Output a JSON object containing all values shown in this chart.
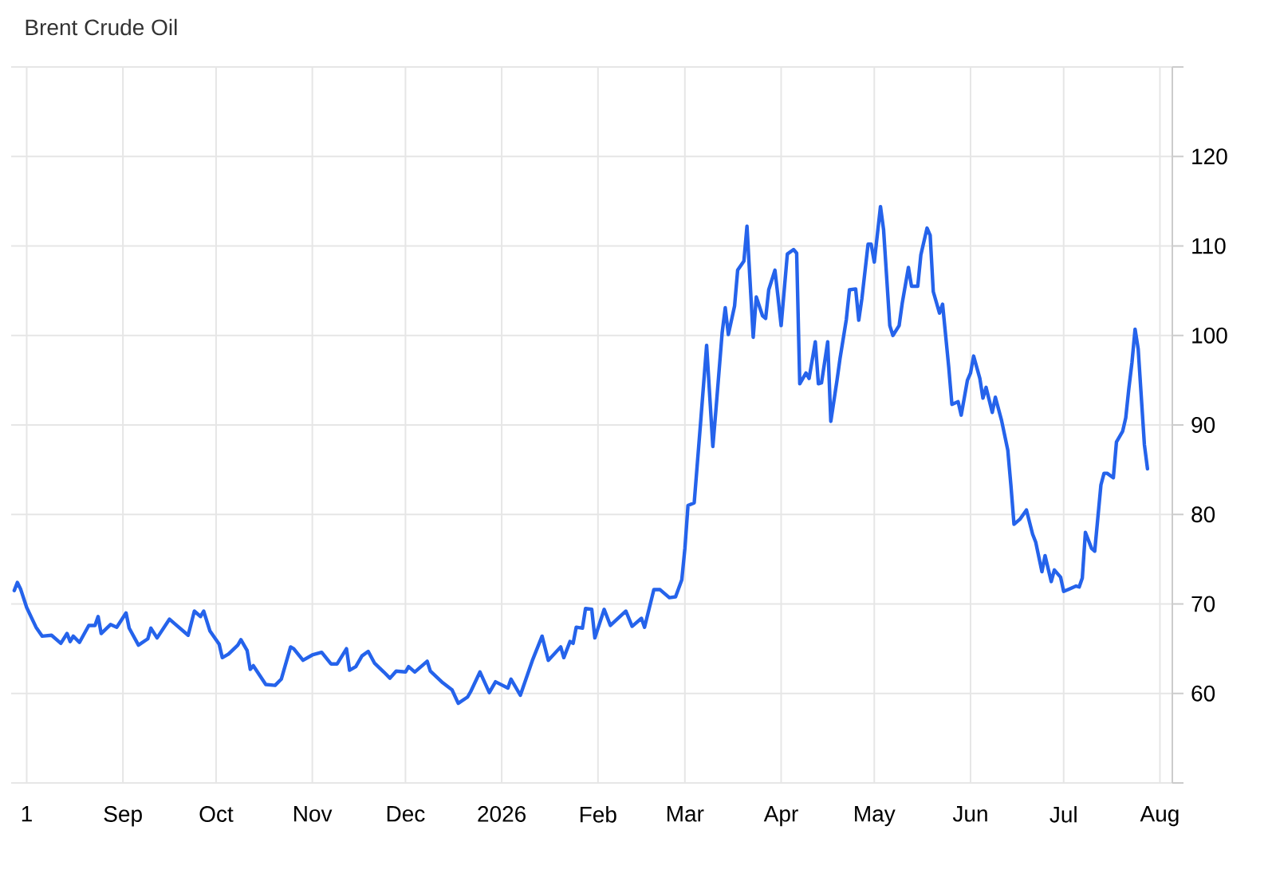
{
  "chart_data": {
    "type": "line",
    "title": "Brent Crude Oil",
    "x": [
      "2025-07-28",
      "2025-07-29",
      "2025-07-30",
      "2025-08-01",
      "2025-08-04",
      "2025-08-06",
      "2025-08-09",
      "2025-08-12",
      "2025-08-14",
      "2025-08-15",
      "2025-08-16",
      "2025-08-18",
      "2025-08-21",
      "2025-08-23",
      "2025-08-24",
      "2025-08-25",
      "2025-08-28",
      "2025-08-30",
      "2025-09-02",
      "2025-09-03",
      "2025-09-06",
      "2025-09-09",
      "2025-09-10",
      "2025-09-12",
      "2025-09-16",
      "2025-09-18",
      "2025-09-22",
      "2025-09-24",
      "2025-09-26",
      "2025-09-27",
      "2025-09-29",
      "2025-10-02",
      "2025-10-03",
      "2025-10-05",
      "2025-10-08",
      "2025-10-09",
      "2025-10-11",
      "2025-10-12",
      "2025-10-13",
      "2025-10-17",
      "2025-10-20",
      "2025-10-22",
      "2025-10-25",
      "2025-10-26",
      "2025-10-29",
      "2025-11-01",
      "2025-11-04",
      "2025-11-07",
      "2025-11-09",
      "2025-11-12",
      "2025-11-13",
      "2025-11-15",
      "2025-11-17",
      "2025-11-19",
      "2025-11-21",
      "2025-11-24",
      "2025-11-26",
      "2025-11-28",
      "2025-12-01",
      "2025-12-02",
      "2025-12-04",
      "2025-12-08",
      "2025-12-09",
      "2025-12-13",
      "2025-12-16",
      "2025-12-18",
      "2025-12-21",
      "2025-12-22",
      "2025-12-25",
      "2025-12-28",
      "2025-12-30",
      "2026-01-03",
      "2026-01-04",
      "2026-01-07",
      "2026-01-11",
      "2026-01-14",
      "2026-01-16",
      "2026-01-20",
      "2026-01-21",
      "2026-01-23",
      "2026-01-24",
      "2026-01-25",
      "2026-01-27",
      "2026-01-28",
      "2026-01-30",
      "2026-01-31",
      "2026-02-03",
      "2026-02-05",
      "2026-02-10",
      "2026-02-12",
      "2026-02-15",
      "2026-02-16",
      "2026-02-19",
      "2026-02-21",
      "2026-02-24",
      "2026-02-26",
      "2026-02-28",
      "2026-03-01",
      "2026-03-02",
      "2026-03-04",
      "2026-03-06",
      "2026-03-08",
      "2026-03-10",
      "2026-03-11",
      "2026-03-13",
      "2026-03-14",
      "2026-03-15",
      "2026-03-17",
      "2026-03-18",
      "2026-03-20",
      "2026-03-21",
      "2026-03-23",
      "2026-03-24",
      "2026-03-26",
      "2026-03-27",
      "2026-03-28",
      "2026-03-30",
      "2026-03-31",
      "2026-04-01",
      "2026-04-03",
      "2026-04-05",
      "2026-04-06",
      "2026-04-07",
      "2026-04-09",
      "2026-04-10",
      "2026-04-12",
      "2026-04-13",
      "2026-04-14",
      "2026-04-16",
      "2026-04-17",
      "2026-04-19",
      "2026-04-20",
      "2026-04-22",
      "2026-04-23",
      "2026-04-25",
      "2026-04-26",
      "2026-04-27",
      "2026-04-29",
      "2026-04-30",
      "2026-05-01",
      "2026-05-03",
      "2026-05-04",
      "2026-05-06",
      "2026-05-07",
      "2026-05-09",
      "2026-05-10",
      "2026-05-12",
      "2026-05-13",
      "2026-05-15",
      "2026-05-16",
      "2026-05-18",
      "2026-05-19",
      "2026-05-20",
      "2026-05-22",
      "2026-05-23",
      "2026-05-25",
      "2026-05-26",
      "2026-05-28",
      "2026-05-29",
      "2026-05-31",
      "2026-06-01",
      "2026-06-02",
      "2026-06-04",
      "2026-06-05",
      "2026-06-06",
      "2026-06-08",
      "2026-06-09",
      "2026-06-11",
      "2026-06-13",
      "2026-06-14",
      "2026-06-15",
      "2026-06-17",
      "2026-06-19",
      "2026-06-21",
      "2026-06-22",
      "2026-06-24",
      "2026-06-25",
      "2026-06-27",
      "2026-06-28",
      "2026-06-30",
      "2026-07-01",
      "2026-07-03",
      "2026-07-05",
      "2026-07-06",
      "2026-07-07",
      "2026-07-08",
      "2026-07-10",
      "2026-07-11",
      "2026-07-13",
      "2026-07-14",
      "2026-07-15",
      "2026-07-17",
      "2026-07-18",
      "2026-07-20",
      "2026-07-21",
      "2026-07-22",
      "2026-07-23",
      "2026-07-24",
      "2026-07-25",
      "2026-07-27",
      "2026-07-28"
    ],
    "series": [
      {
        "color": "#2563eb",
        "values": [
          71.5,
          72.4,
          71.7,
          69.6,
          67.4,
          66.4,
          66.5,
          65.6,
          66.7,
          65.8,
          66.4,
          65.7,
          67.6,
          67.6,
          68.6,
          66.7,
          67.7,
          67.4,
          69.0,
          67.3,
          65.4,
          66.1,
          67.3,
          66.2,
          68.3,
          67.7,
          66.5,
          69.2,
          68.6,
          69.2,
          67.0,
          65.5,
          64.0,
          64.4,
          65.4,
          66.0,
          64.8,
          62.7,
          63.1,
          61.0,
          60.9,
          61.6,
          65.2,
          65.0,
          63.7,
          64.3,
          64.6,
          63.3,
          63.3,
          65.0,
          62.6,
          63.0,
          64.2,
          64.7,
          63.4,
          62.4,
          61.7,
          62.5,
          62.4,
          63.0,
          62.4,
          63.6,
          62.5,
          61.2,
          60.4,
          58.9,
          59.6,
          60.2,
          62.4,
          60.1,
          61.3,
          60.6,
          61.6,
          59.8,
          63.8,
          66.4,
          63.7,
          65.2,
          64.0,
          65.8,
          65.6,
          67.4,
          67.3,
          69.5,
          69.4,
          66.2,
          69.4,
          67.6,
          69.2,
          67.5,
          68.4,
          67.4,
          71.6,
          71.6,
          70.7,
          70.8,
          72.7,
          76.2,
          81.0,
          81.3,
          90.0,
          98.9,
          87.6,
          91.7,
          100.3,
          103.1,
          100.1,
          103.3,
          107.3,
          108.3,
          112.2,
          99.8,
          104.3,
          102.2,
          101.9,
          105.1,
          107.3,
          104.3,
          101.1,
          109.1,
          109.6,
          109.2,
          94.6,
          95.8,
          95.2,
          99.3,
          94.6,
          94.7,
          99.3,
          90.4,
          95.0,
          97.5,
          101.8,
          105.1,
          105.2,
          101.7,
          104.1,
          110.2,
          110.2,
          108.2,
          114.4,
          111.8,
          101.1,
          100.0,
          101.1,
          103.6,
          107.6,
          105.5,
          105.5,
          109.0,
          112.0,
          111.2,
          104.9,
          102.5,
          103.5,
          96.4,
          92.3,
          92.6,
          91.1,
          95.0,
          95.8,
          97.7,
          95.2,
          93.0,
          94.2,
          91.4,
          93.1,
          90.5,
          87.2,
          83.3,
          78.9,
          79.5,
          80.5,
          77.8,
          76.9,
          73.6,
          75.4,
          72.5,
          73.8,
          73.0,
          71.4,
          71.7,
          72.0,
          71.9,
          72.9,
          78.0,
          76.2,
          75.9,
          83.3,
          84.6,
          84.6,
          84.1,
          88.1,
          89.3,
          90.8,
          94.1,
          97.0,
          100.7,
          98.5,
          87.8,
          85.1
        ]
      }
    ],
    "xlim": [
      "2025-07-27",
      "2026-08-05"
    ],
    "xticks": [
      {
        "value": "2025-08-01",
        "label": "1"
      },
      {
        "value": "2025-09-01",
        "label": "Sep"
      },
      {
        "value": "2025-10-01",
        "label": "Oct"
      },
      {
        "value": "2025-11-01",
        "label": "Nov"
      },
      {
        "value": "2025-12-01",
        "label": "Dec"
      },
      {
        "value": "2026-01-01",
        "label": "2026"
      },
      {
        "value": "2026-02-01",
        "label": "Feb"
      },
      {
        "value": "2026-03-01",
        "label": "Mar"
      },
      {
        "value": "2026-04-01",
        "label": "Apr"
      },
      {
        "value": "2026-05-01",
        "label": "May"
      },
      {
        "value": "2026-06-01",
        "label": "Jun"
      },
      {
        "value": "2026-07-01",
        "label": "Jul"
      },
      {
        "value": "2026-08-01",
        "label": "Aug"
      }
    ],
    "ylim": [
      50,
      130
    ],
    "yticks": [
      {
        "value": 50,
        "label": null
      },
      60,
      70,
      80,
      90,
      100,
      110,
      120,
      {
        "value": 130,
        "label": null
      }
    ],
    "grid": true
  }
}
